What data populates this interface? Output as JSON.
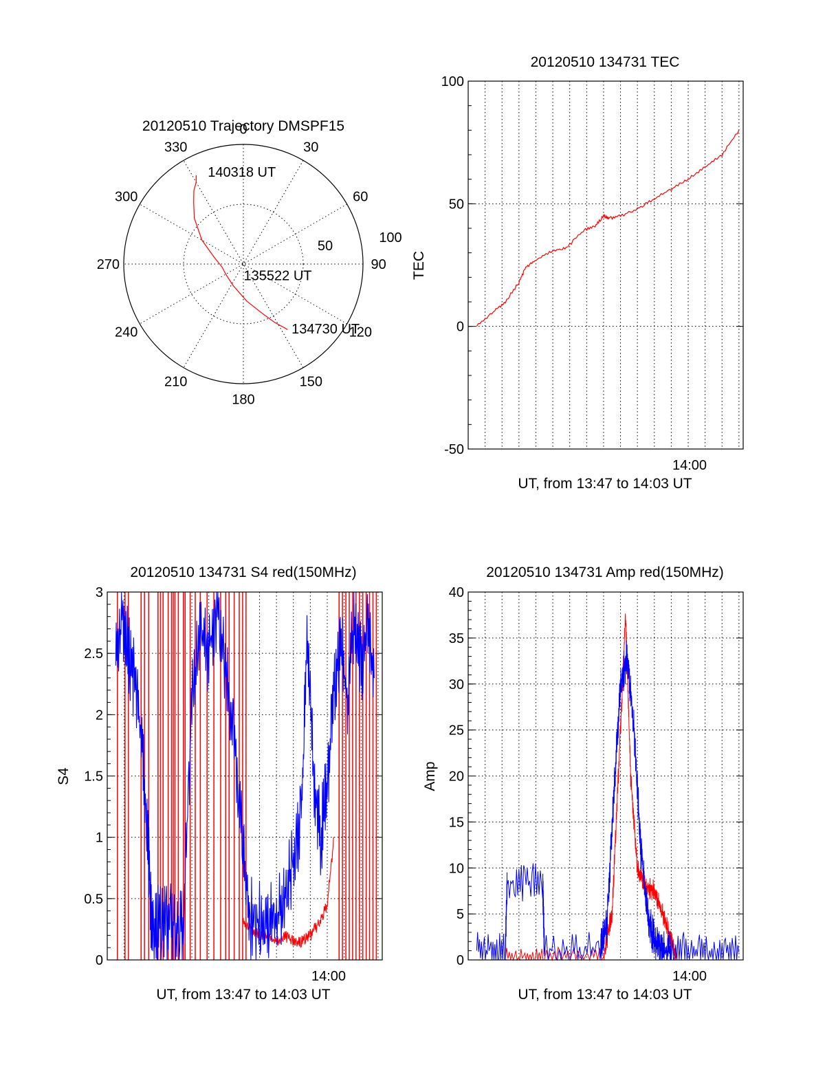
{
  "chart_data": [
    {
      "type": "polar",
      "title": "20120510 Trajectory DMSPF15",
      "angle_labels": [
        "0",
        "30",
        "60",
        "90",
        "120",
        "150",
        "180",
        "210",
        "240",
        "270",
        "300",
        "330"
      ],
      "radius_labels": [
        "50",
        "100"
      ],
      "rlim": [
        0,
        100
      ],
      "grid": true,
      "colors": {
        "track": "#ff0000"
      },
      "series": [
        {
          "points": [
            {
              "az": 146,
              "r": 66
            },
            {
              "az": 152,
              "r": 55
            },
            {
              "az": 160,
              "r": 43
            },
            {
              "az": 175,
              "r": 31
            },
            {
              "az": 205,
              "r": 20
            },
            {
              "az": 240,
              "r": 17
            },
            {
              "az": 262,
              "r": 18
            },
            {
              "az": 283,
              "r": 25
            },
            {
              "az": 300,
              "r": 40
            },
            {
              "az": 313,
              "r": 56
            },
            {
              "az": 321,
              "r": 66
            },
            {
              "az": 326,
              "r": 74
            },
            {
              "az": 330,
              "r": 79
            },
            {
              "az": 332,
              "r": 84
            }
          ]
        }
      ],
      "annotations": [
        {
          "text": "140318 UT",
          "az": 339,
          "r": 83
        },
        {
          "text": "135522 UT",
          "az": 178,
          "r": 9
        },
        {
          "text": "134730 UT",
          "az": 143,
          "r": 67
        }
      ]
    },
    {
      "type": "line",
      "title": "20120510 134731 TEC",
      "xlabel": "UT, from 13:47 to 14:03 UT",
      "ylabel": "TEC",
      "ylim": [
        -50,
        100
      ],
      "yticks": [
        "-50",
        "0",
        "50",
        "100"
      ],
      "xtick_labels": [
        {
          "text": "14:00",
          "at": 13
        }
      ],
      "xlim": [
        0,
        16.25
      ],
      "grid": true,
      "colors": {
        "line": "#ff0000"
      },
      "series": [
        {
          "x": [
            0.5,
            1.5,
            2.2,
            3.0,
            3.4,
            4.0,
            5.0,
            5.8,
            6.8,
            7.5,
            8.0,
            8.3,
            9.0,
            10.0,
            11.0,
            12.0,
            13.0,
            14.0,
            15.0,
            16.0
          ],
          "y": [
            0,
            6,
            10,
            18,
            24,
            27,
            31,
            32,
            39,
            41,
            45,
            44,
            45,
            48,
            52,
            56,
            60,
            65,
            70,
            80
          ]
        }
      ]
    },
    {
      "type": "line",
      "title": "20120510 134731 S4 red(150MHz)",
      "xlabel": "UT, from 13:47 to 14:03 UT",
      "ylabel": "S4",
      "ylim": [
        0,
        3
      ],
      "yticks": [
        "0",
        "0.5",
        "1",
        "1.5",
        "2",
        "2.5",
        "3"
      ],
      "xtick_labels": [
        {
          "text": "14:00",
          "at": 13
        }
      ],
      "xlim": [
        0,
        16.25
      ],
      "grid": true,
      "colors": {
        "red": "#ff0000",
        "blue": "#0000ff"
      },
      "series": [
        {
          "color": "red",
          "x": [
            8.0,
            8.5,
            9.0,
            9.5,
            10.0,
            10.5,
            11.0,
            11.5,
            12.0,
            12.5,
            13.0,
            13.4
          ],
          "y": [
            0.3,
            0.25,
            0.2,
            0.18,
            0.15,
            0.2,
            0.15,
            0.15,
            0.2,
            0.3,
            0.45,
            1.0
          ],
          "spikes_x": [
            0.6,
            1.05,
            1.25,
            2.0,
            2.2,
            2.45,
            3.0,
            3.15,
            3.3,
            3.6,
            3.8,
            3.9,
            4.0,
            4.2,
            4.5,
            4.6,
            4.9,
            5.2,
            5.5,
            5.9,
            6.3,
            6.7,
            7.0,
            7.2,
            7.5,
            7.8,
            8.0,
            8.2,
            13.7,
            13.9,
            14.1,
            14.3,
            14.5,
            14.7,
            14.9,
            15.1,
            15.3,
            15.5,
            15.7,
            15.9
          ]
        },
        {
          "color": "blue",
          "x": [
            0.5,
            0.9,
            1.3,
            1.7,
            2.1,
            2.4,
            2.6,
            3.0,
            3.5,
            4.0,
            4.5,
            5.0,
            5.5,
            6.0,
            6.5,
            7.0,
            7.5,
            8.0,
            8.4,
            9.0,
            9.5,
            10.0,
            10.5,
            11.0,
            11.5,
            11.8,
            12.2,
            12.6,
            13.0,
            13.4,
            13.8,
            14.2,
            14.6,
            15.0,
            15.4,
            15.8
          ],
          "y": [
            2.4,
            2.8,
            2.5,
            2.2,
            1.7,
            1.0,
            0.3,
            0.28,
            0.27,
            0.28,
            0.28,
            2.1,
            2.7,
            2.5,
            2.9,
            2.4,
            1.8,
            1.0,
            0.35,
            0.3,
            0.32,
            0.35,
            0.5,
            0.8,
            1.2,
            2.7,
            1.5,
            1.0,
            1.4,
            2.2,
            2.6,
            2.1,
            2.8,
            2.4,
            2.7,
            2.3
          ]
        }
      ]
    },
    {
      "type": "line",
      "title": "20120510 134731 Amp red(150MHz)",
      "xlabel": "UT, from 13:47 to 14:03 UT",
      "ylabel": "Amp",
      "ylim": [
        0,
        40
      ],
      "yticks": [
        "0",
        "5",
        "10",
        "15",
        "20",
        "25",
        "30",
        "35",
        "40"
      ],
      "xtick_labels": [
        {
          "text": "14:00",
          "at": 13
        }
      ],
      "xlim": [
        0,
        16.25
      ],
      "grid": true,
      "colors": {
        "red": "#ff0000",
        "blue": "#0000ff"
      },
      "series": [
        {
          "color": "red",
          "x": [
            2.2,
            4.5,
            8.0,
            8.5,
            9.0,
            9.3,
            9.6,
            10.0,
            10.5,
            11.0,
            11.5,
            12.0,
            12.3
          ],
          "y": [
            0.2,
            0.2,
            0.5,
            5.0,
            25.0,
            37.5,
            20.0,
            10.0,
            8.0,
            7.5,
            5.0,
            2.0,
            0.3
          ]
        },
        {
          "color": "blue",
          "x": [
            0.5,
            2.2,
            2.3,
            4.4,
            4.5,
            7.8,
            8.2,
            8.6,
            9.0,
            9.4,
            9.8,
            10.2,
            10.6,
            11.0,
            11.5,
            12.0,
            14.0,
            16.0
          ],
          "y": [
            1.0,
            1.0,
            8.5,
            8.5,
            1.0,
            1.0,
            4.0,
            18.0,
            30.0,
            33.0,
            25.0,
            12.0,
            5.0,
            2.0,
            1.0,
            1.0,
            0.8,
            0.8
          ]
        }
      ]
    }
  ]
}
